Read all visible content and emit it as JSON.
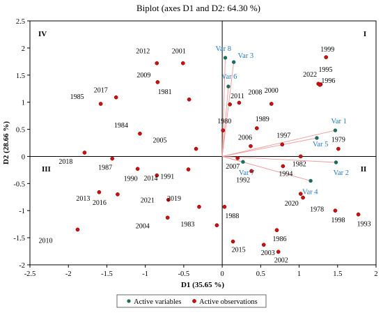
{
  "chart_data": {
    "type": "scatter",
    "title": "Biplot (axes D1 and D2: 64.30 %)",
    "xlabel": "D1 (35.65 %)",
    "ylabel": "D2 (28.66 %)",
    "xlim": [
      -2.5,
      2
    ],
    "ylim": [
      -2,
      2.5
    ],
    "xticks": [
      "-2.5",
      "-2",
      "-1.5",
      "-1",
      "-0.5",
      "0",
      "0.5",
      "1",
      "1.5",
      "2"
    ],
    "yticks": [
      "-2",
      "-1.5",
      "-1",
      "-0.5",
      "0",
      "0.5",
      "1",
      "1.5",
      "2",
      "2.5"
    ],
    "quadrants": {
      "q1": "I",
      "q2": "II",
      "q3": "III",
      "q4": "IV"
    },
    "legend": {
      "position": "bottom",
      "items": [
        {
          "label": "Active variables",
          "color": "#1e6b5a"
        },
        {
          "label": "Active observations",
          "color": "#cc1010"
        }
      ]
    },
    "colors": {
      "variables": "#1e6b5a",
      "observations": "#cc1010",
      "vectors": "#ef9a9a",
      "var_labels": "#2277bb"
    },
    "series": [
      {
        "name": "Active variables",
        "points": [
          {
            "label": "Var 1",
            "x": 1.47,
            "y": 0.48
          },
          {
            "label": "Var 2",
            "x": 1.48,
            "y": -0.11
          },
          {
            "label": "Var 3",
            "x": 0.15,
            "y": 1.74
          },
          {
            "label": "Var 4",
            "x": 1.15,
            "y": -0.45
          },
          {
            "label": "Var 5",
            "x": 1.23,
            "y": 0.34
          },
          {
            "label": "Var 6",
            "x": 0.08,
            "y": 1.29
          },
          {
            "label": "Var 7",
            "x": 0.27,
            "y": -0.1
          },
          {
            "label": "Var 8",
            "x": 0.04,
            "y": 1.82
          }
        ]
      },
      {
        "name": "Active observations",
        "points": [
          {
            "label": "1999",
            "x": 1.35,
            "y": 1.83
          },
          {
            "label": "2012",
            "x": -0.85,
            "y": 1.72
          },
          {
            "label": "2001",
            "x": -0.51,
            "y": 1.72
          },
          {
            "label": "2009",
            "x": -0.84,
            "y": 1.37
          },
          {
            "label": "1981",
            "x": -0.43,
            "y": 1.05
          },
          {
            "label": "2022",
            "x": 1.25,
            "y": 1.34
          },
          {
            "label": "1995",
            "x": 1.28,
            "y": 1.33
          },
          {
            "label": "1996",
            "x": 1.27,
            "y": 1.32
          },
          {
            "label": "2017",
            "x": -1.38,
            "y": 1.09
          },
          {
            "label": "1985",
            "x": -1.58,
            "y": 0.97
          },
          {
            "label": "2011",
            "x": 0.1,
            "y": 0.96
          },
          {
            "label": "2008",
            "x": 0.22,
            "y": 0.99
          },
          {
            "label": "2000",
            "x": 0.64,
            "y": 0.97
          },
          {
            "label": "1980",
            "x": 0.01,
            "y": 0.48
          },
          {
            "label": "1989",
            "x": 0.45,
            "y": 0.52
          },
          {
            "label": "1984",
            "x": -1.07,
            "y": 0.42
          },
          {
            "label": "2006",
            "x": 0.37,
            "y": 0.19
          },
          {
            "label": "1997",
            "x": 0.78,
            "y": 0.22
          },
          {
            "label": "1982",
            "x": 1.02,
            "y": 0.0
          },
          {
            "label": "1979",
            "x": 1.51,
            "y": 0.14
          },
          {
            "label": "2005",
            "x": -0.34,
            "y": 0.14
          },
          {
            "label": "2018",
            "x": -1.79,
            "y": 0.07
          },
          {
            "label": "1987",
            "x": -1.43,
            "y": -0.04
          },
          {
            "label": "1990",
            "x": -1.1,
            "y": -0.23
          },
          {
            "label": "2014",
            "x": -0.44,
            "y": -0.24
          },
          {
            "label": "1991",
            "x": -0.85,
            "y": -0.35
          },
          {
            "label": "2007",
            "x": 0.2,
            "y": -0.03
          },
          {
            "label": "1994",
            "x": 0.79,
            "y": -0.18
          },
          {
            "label": "1992",
            "x": 0.38,
            "y": -0.27
          },
          {
            "label": "2013",
            "x": -1.6,
            "y": -0.66
          },
          {
            "label": "2016",
            "x": -1.36,
            "y": -0.7
          },
          {
            "label": "2021",
            "x": -0.7,
            "y": -0.8
          },
          {
            "label": "2019",
            "x": -0.3,
            "y": -0.93
          },
          {
            "label": "2004",
            "x": -0.71,
            "y": -1.13
          },
          {
            "label": "1988",
            "x": 0.03,
            "y": -0.93
          },
          {
            "label": "1983",
            "x": -0.07,
            "y": -1.27
          },
          {
            "label": "2020",
            "x": 1.02,
            "y": -0.69
          },
          {
            "label": "1978",
            "x": 1.05,
            "y": -0.76
          },
          {
            "label": "1998",
            "x": 1.47,
            "y": -1.0
          },
          {
            "label": "1993",
            "x": 1.77,
            "y": -1.07
          },
          {
            "label": "1986",
            "x": 0.71,
            "y": -1.36
          },
          {
            "label": "2015",
            "x": 0.14,
            "y": -1.57
          },
          {
            "label": "2003",
            "x": 0.54,
            "y": -1.63
          },
          {
            "label": "2002",
            "x": 0.73,
            "y": -1.76
          },
          {
            "label": "2010",
            "x": -1.88,
            "y": -1.35
          }
        ]
      }
    ]
  }
}
